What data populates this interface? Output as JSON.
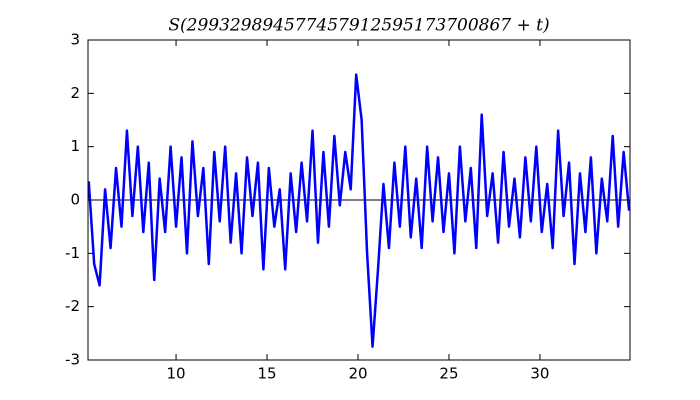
{
  "chart_data": {
    "type": "line",
    "title": "S(299329894577457912595173700867 + t)",
    "x": [
      5.2,
      5.5,
      5.8,
      6.1,
      6.4,
      6.7,
      7.0,
      7.3,
      7.6,
      7.9,
      8.2,
      8.5,
      8.8,
      9.1,
      9.4,
      9.7,
      10.0,
      10.3,
      10.6,
      10.9,
      11.2,
      11.5,
      11.8,
      12.1,
      12.4,
      12.7,
      13.0,
      13.3,
      13.6,
      13.9,
      14.2,
      14.5,
      14.8,
      15.1,
      15.4,
      15.7,
      16.0,
      16.3,
      16.6,
      16.9,
      17.2,
      17.5,
      17.8,
      18.1,
      18.4,
      18.7,
      19.0,
      19.3,
      19.6,
      19.9,
      20.2,
      20.5,
      20.8,
      21.1,
      21.4,
      21.7,
      22.0,
      22.3,
      22.6,
      22.9,
      23.2,
      23.5,
      23.8,
      24.1,
      24.4,
      24.7,
      25.0,
      25.3,
      25.6,
      25.9,
      26.2,
      26.5,
      26.8,
      27.1,
      27.4,
      27.7,
      28.0,
      28.3,
      28.6,
      28.9,
      29.2,
      29.5,
      29.8,
      30.1,
      30.4,
      30.7,
      31.0,
      31.3,
      31.6,
      31.9,
      32.2,
      32.5,
      32.8,
      33.1,
      33.4,
      33.7,
      34.0,
      34.3,
      34.6,
      34.9
    ],
    "series": [
      {
        "color": "#0000ff",
        "values": [
          0.35,
          -1.2,
          -1.6,
          0.2,
          -0.9,
          0.6,
          -0.5,
          1.3,
          -0.3,
          1.0,
          -0.6,
          0.7,
          -1.5,
          0.4,
          -0.6,
          1.0,
          -0.5,
          0.8,
          -1.0,
          1.1,
          -0.3,
          0.6,
          -1.2,
          0.9,
          -0.4,
          1.0,
          -0.8,
          0.5,
          -1.0,
          0.8,
          -0.3,
          0.7,
          -1.3,
          0.6,
          -0.5,
          0.2,
          -1.3,
          0.5,
          -0.6,
          0.7,
          -0.4,
          1.3,
          -0.8,
          0.9,
          -0.5,
          1.2,
          -0.1,
          0.9,
          0.2,
          2.35,
          1.5,
          -1.0,
          -2.75,
          -1.3,
          0.3,
          -0.9,
          0.7,
          -0.5,
          1.0,
          -0.7,
          0.4,
          -0.9,
          1.0,
          -0.4,
          0.8,
          -0.6,
          0.5,
          -1.0,
          1.0,
          -0.4,
          0.6,
          -0.9,
          1.6,
          -0.3,
          0.5,
          -0.8,
          0.9,
          -0.5,
          0.4,
          -0.7,
          0.8,
          -0.4,
          1.0,
          -0.6,
          0.3,
          -0.9,
          1.3,
          -0.3,
          0.7,
          -1.2,
          0.5,
          -0.6,
          0.8,
          -1.0,
          0.4,
          -0.4,
          1.2,
          -0.5,
          0.9,
          -0.2
        ]
      }
    ],
    "hline": 0,
    "xlim": [
      5.16,
      34.95
    ],
    "xticks": [
      10,
      15,
      20,
      25,
      30
    ],
    "ylim": [
      -3,
      3
    ],
    "yticks": [
      -3,
      -2,
      -1,
      0,
      1,
      2,
      3
    ]
  }
}
